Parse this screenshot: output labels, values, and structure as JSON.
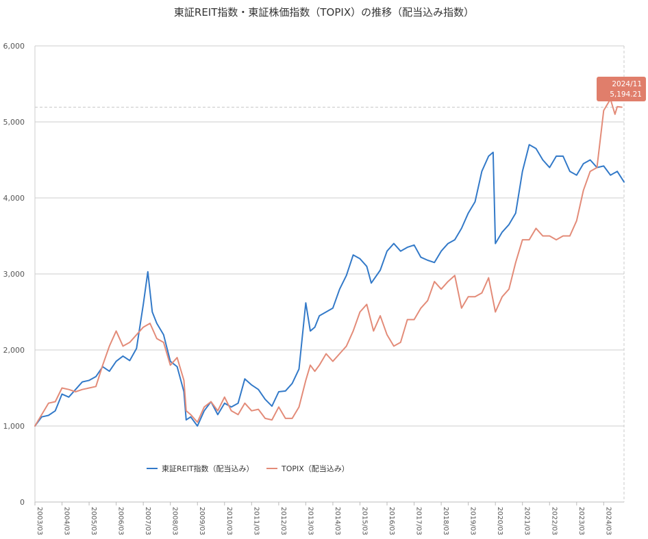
{
  "chart_data": {
    "type": "line",
    "title": "東証REIT指数・東証株価指数（TOPIX）の推移（配当込み指数）",
    "xlabel": "",
    "ylabel": "",
    "ylim": [
      0,
      6000
    ],
    "yticks": [
      0,
      1000,
      2000,
      3000,
      4000,
      5000,
      6000
    ],
    "ytick_labels": [
      "0",
      "1,000",
      "2,000",
      "3,000",
      "4,000",
      "5,000",
      "6,000"
    ],
    "xtick_labels": [
      "2003/03",
      "2004/03",
      "2005/03",
      "2006/03",
      "2007/03",
      "2008/03",
      "2009/03",
      "2010/03",
      "2011/03",
      "2012/03",
      "2013/03",
      "2014/03",
      "2015/03",
      "2016/03",
      "2017/03",
      "2018/03",
      "2019/03",
      "2020/03",
      "2021/03",
      "2022/03",
      "2023/03",
      "2024/03"
    ],
    "x_start": "2003/03",
    "x_end": "2024/12",
    "grid": true,
    "legend_position": "bottom-left",
    "colors": {
      "reit": "#3279c8",
      "topix": "#e38b78",
      "tooltip": "#e07e6b",
      "grid": "#cccccc"
    },
    "tooltip": {
      "date": "2024/11",
      "value": "5,194.21"
    },
    "series": [
      {
        "name": "東証REIT指数（配当込み）",
        "points": [
          [
            "2003/03",
            1000
          ],
          [
            "2003/06",
            1120
          ],
          [
            "2003/09",
            1140
          ],
          [
            "2003/12",
            1200
          ],
          [
            "2004/03",
            1420
          ],
          [
            "2004/06",
            1380
          ],
          [
            "2004/09",
            1480
          ],
          [
            "2004/12",
            1580
          ],
          [
            "2005/03",
            1600
          ],
          [
            "2005/06",
            1650
          ],
          [
            "2005/09",
            1780
          ],
          [
            "2005/12",
            1720
          ],
          [
            "2006/03",
            1850
          ],
          [
            "2006/06",
            1920
          ],
          [
            "2006/09",
            1860
          ],
          [
            "2006/12",
            2020
          ],
          [
            "2007/03",
            2600
          ],
          [
            "2007/05",
            3030
          ],
          [
            "2007/07",
            2500
          ],
          [
            "2007/09",
            2350
          ],
          [
            "2007/12",
            2200
          ],
          [
            "2008/03",
            1850
          ],
          [
            "2008/06",
            1780
          ],
          [
            "2008/09",
            1450
          ],
          [
            "2008/10",
            1080
          ],
          [
            "2008/12",
            1120
          ],
          [
            "2009/03",
            1000
          ],
          [
            "2009/06",
            1200
          ],
          [
            "2009/09",
            1320
          ],
          [
            "2009/12",
            1150
          ],
          [
            "2010/03",
            1300
          ],
          [
            "2010/06",
            1250
          ],
          [
            "2010/09",
            1300
          ],
          [
            "2010/12",
            1620
          ],
          [
            "2011/03",
            1540
          ],
          [
            "2011/06",
            1480
          ],
          [
            "2011/09",
            1350
          ],
          [
            "2011/12",
            1260
          ],
          [
            "2012/03",
            1450
          ],
          [
            "2012/06",
            1460
          ],
          [
            "2012/09",
            1560
          ],
          [
            "2012/12",
            1750
          ],
          [
            "2013/03",
            2620
          ],
          [
            "2013/05",
            2250
          ],
          [
            "2013/07",
            2300
          ],
          [
            "2013/09",
            2450
          ],
          [
            "2013/12",
            2500
          ],
          [
            "2014/03",
            2550
          ],
          [
            "2014/06",
            2800
          ],
          [
            "2014/09",
            2980
          ],
          [
            "2014/12",
            3250
          ],
          [
            "2015/03",
            3200
          ],
          [
            "2015/06",
            3100
          ],
          [
            "2015/08",
            2880
          ],
          [
            "2015/12",
            3050
          ],
          [
            "2016/03",
            3300
          ],
          [
            "2016/06",
            3400
          ],
          [
            "2016/09",
            3300
          ],
          [
            "2016/12",
            3350
          ],
          [
            "2017/03",
            3380
          ],
          [
            "2017/06",
            3220
          ],
          [
            "2017/09",
            3180
          ],
          [
            "2017/12",
            3150
          ],
          [
            "2018/03",
            3300
          ],
          [
            "2018/06",
            3400
          ],
          [
            "2018/09",
            3450
          ],
          [
            "2018/12",
            3600
          ],
          [
            "2019/03",
            3800
          ],
          [
            "2019/06",
            3950
          ],
          [
            "2019/09",
            4350
          ],
          [
            "2019/12",
            4550
          ],
          [
            "2020/02",
            4600
          ],
          [
            "2020/03",
            3400
          ],
          [
            "2020/06",
            3550
          ],
          [
            "2020/09",
            3650
          ],
          [
            "2020/12",
            3800
          ],
          [
            "2021/03",
            4350
          ],
          [
            "2021/06",
            4700
          ],
          [
            "2021/09",
            4650
          ],
          [
            "2021/12",
            4500
          ],
          [
            "2022/03",
            4400
          ],
          [
            "2022/06",
            4550
          ],
          [
            "2022/09",
            4550
          ],
          [
            "2022/12",
            4350
          ],
          [
            "2023/03",
            4300
          ],
          [
            "2023/06",
            4450
          ],
          [
            "2023/09",
            4500
          ],
          [
            "2023/12",
            4400
          ],
          [
            "2024/03",
            4420
          ],
          [
            "2024/06",
            4300
          ],
          [
            "2024/09",
            4350
          ],
          [
            "2024/12",
            4210
          ]
        ]
      },
      {
        "name": "TOPIX（配当込み）",
        "points": [
          [
            "2003/03",
            1000
          ],
          [
            "2003/06",
            1150
          ],
          [
            "2003/09",
            1300
          ],
          [
            "2003/12",
            1320
          ],
          [
            "2004/03",
            1500
          ],
          [
            "2004/06",
            1480
          ],
          [
            "2004/09",
            1450
          ],
          [
            "2004/12",
            1480
          ],
          [
            "2005/03",
            1500
          ],
          [
            "2005/06",
            1520
          ],
          [
            "2005/09",
            1800
          ],
          [
            "2005/12",
            2050
          ],
          [
            "2006/03",
            2250
          ],
          [
            "2006/06",
            2050
          ],
          [
            "2006/09",
            2100
          ],
          [
            "2006/12",
            2200
          ],
          [
            "2007/03",
            2300
          ],
          [
            "2007/06",
            2350
          ],
          [
            "2007/09",
            2150
          ],
          [
            "2007/12",
            2100
          ],
          [
            "2008/03",
            1800
          ],
          [
            "2008/06",
            1900
          ],
          [
            "2008/09",
            1600
          ],
          [
            "2008/10",
            1200
          ],
          [
            "2008/12",
            1150
          ],
          [
            "2009/03",
            1050
          ],
          [
            "2009/06",
            1250
          ],
          [
            "2009/09",
            1320
          ],
          [
            "2009/12",
            1200
          ],
          [
            "2010/03",
            1380
          ],
          [
            "2010/06",
            1200
          ],
          [
            "2010/09",
            1150
          ],
          [
            "2010/12",
            1300
          ],
          [
            "2011/03",
            1200
          ],
          [
            "2011/06",
            1220
          ],
          [
            "2011/09",
            1100
          ],
          [
            "2011/12",
            1080
          ],
          [
            "2012/03",
            1250
          ],
          [
            "2012/06",
            1100
          ],
          [
            "2012/09",
            1100
          ],
          [
            "2012/12",
            1250
          ],
          [
            "2013/03",
            1600
          ],
          [
            "2013/05",
            1800
          ],
          [
            "2013/07",
            1720
          ],
          [
            "2013/09",
            1800
          ],
          [
            "2013/12",
            1950
          ],
          [
            "2014/03",
            1850
          ],
          [
            "2014/06",
            1950
          ],
          [
            "2014/09",
            2050
          ],
          [
            "2014/12",
            2250
          ],
          [
            "2015/03",
            2500
          ],
          [
            "2015/06",
            2600
          ],
          [
            "2015/09",
            2250
          ],
          [
            "2015/12",
            2450
          ],
          [
            "2016/03",
            2200
          ],
          [
            "2016/06",
            2050
          ],
          [
            "2016/09",
            2100
          ],
          [
            "2016/12",
            2400
          ],
          [
            "2017/03",
            2400
          ],
          [
            "2017/06",
            2550
          ],
          [
            "2017/09",
            2650
          ],
          [
            "2017/12",
            2900
          ],
          [
            "2018/03",
            2800
          ],
          [
            "2018/06",
            2900
          ],
          [
            "2018/09",
            2980
          ],
          [
            "2018/12",
            2550
          ],
          [
            "2019/03",
            2700
          ],
          [
            "2019/06",
            2700
          ],
          [
            "2019/09",
            2750
          ],
          [
            "2019/12",
            2950
          ],
          [
            "2020/03",
            2500
          ],
          [
            "2020/06",
            2700
          ],
          [
            "2020/09",
            2800
          ],
          [
            "2020/12",
            3150
          ],
          [
            "2021/03",
            3450
          ],
          [
            "2021/06",
            3450
          ],
          [
            "2021/09",
            3600
          ],
          [
            "2021/12",
            3500
          ],
          [
            "2022/03",
            3500
          ],
          [
            "2022/06",
            3450
          ],
          [
            "2022/09",
            3500
          ],
          [
            "2022/12",
            3500
          ],
          [
            "2023/03",
            3700
          ],
          [
            "2023/06",
            4100
          ],
          [
            "2023/09",
            4350
          ],
          [
            "2023/12",
            4400
          ],
          [
            "2024/03",
            5150
          ],
          [
            "2024/06",
            5300
          ],
          [
            "2024/08",
            5100
          ],
          [
            "2024/09",
            5200
          ],
          [
            "2024/11",
            5194
          ]
        ]
      }
    ]
  }
}
